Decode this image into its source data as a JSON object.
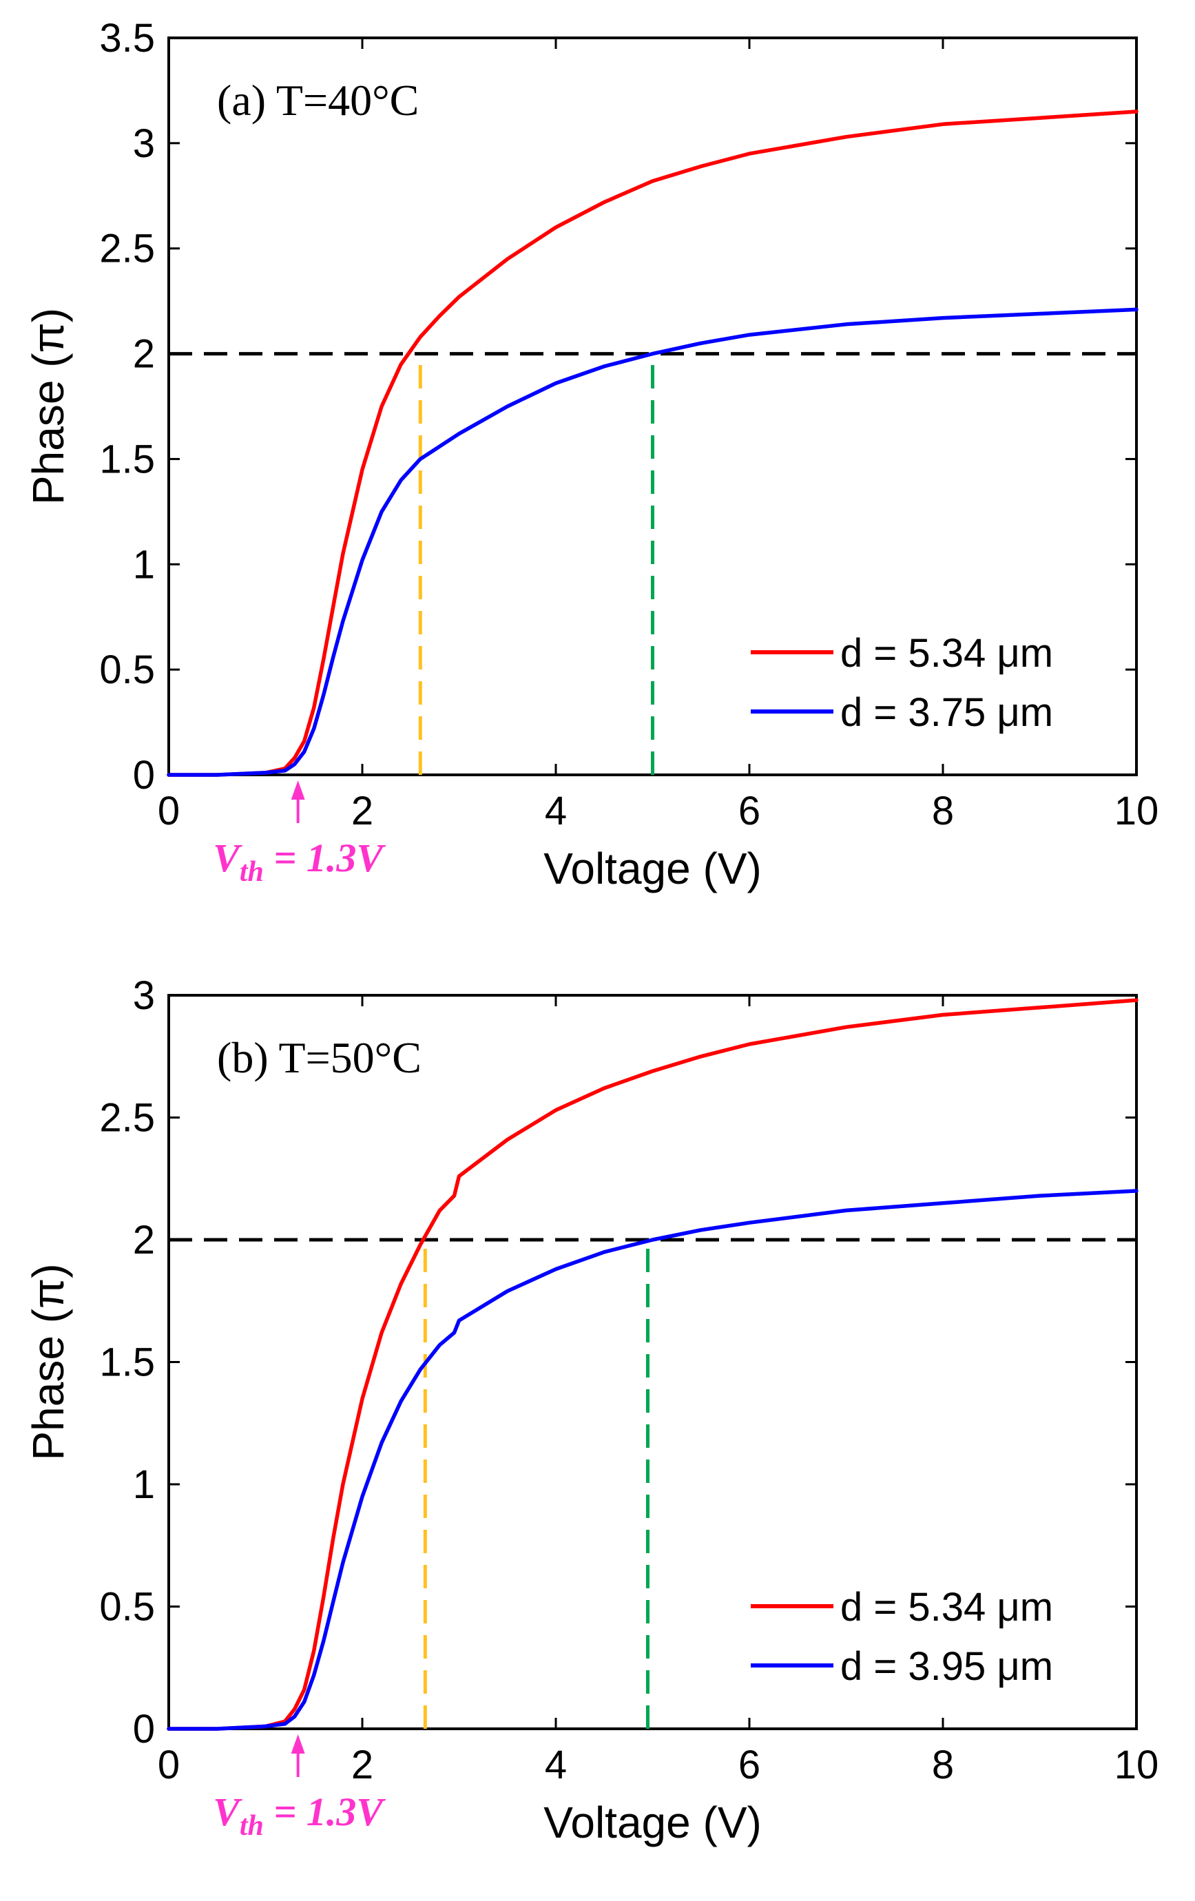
{
  "chart_data": [
    {
      "type": "line",
      "title": "(a)  T=40°C",
      "xlabel": "Voltage (V)",
      "ylabel": "Phase (π)",
      "xlim": [
        0,
        10
      ],
      "ylim": [
        0,
        3.5
      ],
      "xticks": [
        "0",
        "2",
        "4",
        "6",
        "8",
        "10"
      ],
      "yticks": [
        "0",
        "0.5",
        "1",
        "1.5",
        "2",
        "2.5",
        "3",
        "3.5"
      ],
      "xtick_values": [
        0,
        2,
        4,
        6,
        8,
        10
      ],
      "ytick_values": [
        0,
        0.5,
        1,
        1.5,
        2,
        2.5,
        3,
        3.5
      ],
      "legend_position": "bottom-right",
      "threshold": {
        "label": "V",
        "sub": "th",
        "suffix": " = 1.3V",
        "x": 1.3,
        "color": "#ff33cc"
      },
      "reference_lines": [
        {
          "kind": "horizontal",
          "y": 2,
          "color": "#000000"
        },
        {
          "kind": "vertical",
          "x": 2.6,
          "y_top": 2,
          "color": "#ffc020"
        },
        {
          "kind": "vertical",
          "x": 5.0,
          "y_top": 2,
          "color": "#00a651"
        }
      ],
      "series": [
        {
          "name": "d = 5.34 μm",
          "color": "#ff0000",
          "x": [
            0,
            0.5,
            1.0,
            1.2,
            1.3,
            1.4,
            1.5,
            1.6,
            1.7,
            1.8,
            2.0,
            2.2,
            2.4,
            2.6,
            2.8,
            3.0,
            3.5,
            4.0,
            4.5,
            5.0,
            5.5,
            6.0,
            7.0,
            8.0,
            9.0,
            10.0
          ],
          "y": [
            0,
            0,
            0.01,
            0.03,
            0.08,
            0.16,
            0.32,
            0.55,
            0.8,
            1.05,
            1.45,
            1.75,
            1.95,
            2.08,
            2.18,
            2.27,
            2.45,
            2.6,
            2.72,
            2.82,
            2.89,
            2.95,
            3.03,
            3.09,
            3.12,
            3.15
          ]
        },
        {
          "name": "d = 3.75 μm",
          "color": "#0000ff",
          "x": [
            0,
            0.5,
            1.0,
            1.2,
            1.3,
            1.4,
            1.5,
            1.6,
            1.7,
            1.8,
            2.0,
            2.2,
            2.4,
            2.6,
            2.8,
            3.0,
            3.5,
            4.0,
            4.5,
            5.0,
            5.5,
            6.0,
            7.0,
            8.0,
            9.0,
            10.0
          ],
          "y": [
            0,
            0,
            0.01,
            0.02,
            0.05,
            0.11,
            0.22,
            0.38,
            0.56,
            0.73,
            1.02,
            1.25,
            1.4,
            1.5,
            1.56,
            1.62,
            1.75,
            1.86,
            1.94,
            2.0,
            2.05,
            2.09,
            2.14,
            2.17,
            2.19,
            2.21
          ]
        }
      ]
    },
    {
      "type": "line",
      "title": "(b)  T=50°C",
      "xlabel": "Voltage (V)",
      "ylabel": "Phase (π)",
      "xlim": [
        0,
        10
      ],
      "ylim": [
        0,
        3
      ],
      "xticks": [
        "0",
        "2",
        "4",
        "6",
        "8",
        "10"
      ],
      "yticks": [
        "0",
        "0.5",
        "1",
        "1.5",
        "2",
        "2.5",
        "3"
      ],
      "xtick_values": [
        0,
        2,
        4,
        6,
        8,
        10
      ],
      "ytick_values": [
        0,
        0.5,
        1,
        1.5,
        2,
        2.5,
        3
      ],
      "legend_position": "bottom-right",
      "threshold": {
        "label": "V",
        "sub": "th",
        "suffix": " = 1.3V",
        "x": 1.3,
        "color": "#ff33cc"
      },
      "reference_lines": [
        {
          "kind": "horizontal",
          "y": 2,
          "color": "#000000"
        },
        {
          "kind": "vertical",
          "x": 2.65,
          "y_top": 2,
          "color": "#ffc020"
        },
        {
          "kind": "vertical",
          "x": 4.95,
          "y_top": 2,
          "color": "#00a651"
        }
      ],
      "series": [
        {
          "name": "d = 5.34 μm",
          "color": "#ff0000",
          "x": [
            0,
            0.5,
            1.0,
            1.2,
            1.3,
            1.4,
            1.5,
            1.6,
            1.7,
            1.8,
            2.0,
            2.2,
            2.4,
            2.6,
            2.8,
            2.95,
            3.0,
            3.5,
            4.0,
            4.5,
            5.0,
            5.5,
            6.0,
            7.0,
            8.0,
            9.0,
            10.0
          ],
          "y": [
            0,
            0,
            0.01,
            0.03,
            0.08,
            0.16,
            0.32,
            0.54,
            0.78,
            1.0,
            1.35,
            1.62,
            1.82,
            1.98,
            2.12,
            2.18,
            2.26,
            2.41,
            2.53,
            2.62,
            2.69,
            2.75,
            2.8,
            2.87,
            2.92,
            2.95,
            2.98
          ]
        },
        {
          "name": "d = 3.95 μm",
          "color": "#0000ff",
          "x": [
            0,
            0.5,
            1.0,
            1.2,
            1.3,
            1.4,
            1.5,
            1.6,
            1.7,
            1.8,
            2.0,
            2.2,
            2.4,
            2.6,
            2.8,
            2.95,
            3.0,
            3.5,
            4.0,
            4.5,
            5.0,
            5.5,
            6.0,
            7.0,
            8.0,
            9.0,
            10.0
          ],
          "y": [
            0,
            0,
            0.01,
            0.02,
            0.05,
            0.11,
            0.22,
            0.36,
            0.52,
            0.68,
            0.95,
            1.17,
            1.34,
            1.47,
            1.57,
            1.62,
            1.67,
            1.79,
            1.88,
            1.95,
            2.0,
            2.04,
            2.07,
            2.12,
            2.15,
            2.18,
            2.2
          ]
        }
      ]
    }
  ]
}
